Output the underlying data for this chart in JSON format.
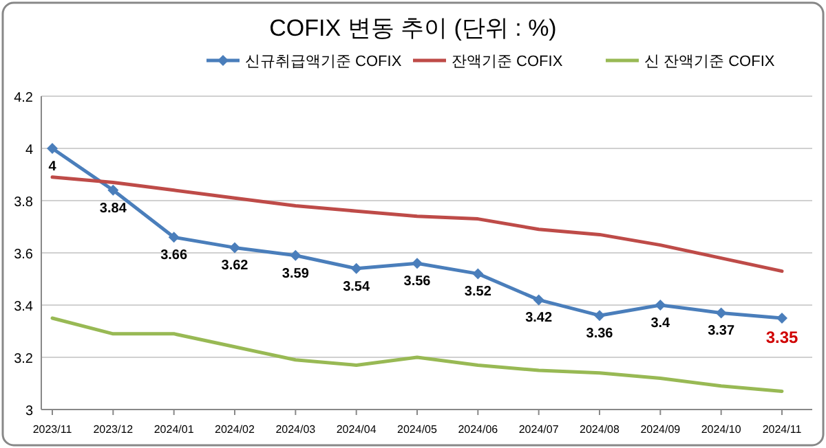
{
  "chart_data": {
    "type": "line",
    "title": "COFIX 변동 추이 (단위 : %)",
    "categories": [
      "2023/11",
      "2023/12",
      "2024/01",
      "2024/02",
      "2024/03",
      "2024/04",
      "2024/05",
      "2024/06",
      "2024/07",
      "2024/08",
      "2024/09",
      "2024/10",
      "2024/11"
    ],
    "series": [
      {
        "name": "신규취급액기준 COFIX",
        "color": "#4a7ebb",
        "marker": "diamond",
        "data_labels": true,
        "values": [
          4,
          3.84,
          3.66,
          3.62,
          3.59,
          3.54,
          3.56,
          3.52,
          3.42,
          3.36,
          3.4,
          3.37,
          3.35
        ]
      },
      {
        "name": "잔액기준 COFIX",
        "color": "#be4b48",
        "marker": "none",
        "values": [
          3.89,
          3.87,
          3.84,
          3.81,
          3.78,
          3.76,
          3.74,
          3.73,
          3.69,
          3.67,
          3.63,
          3.58,
          3.53
        ]
      },
      {
        "name": "신 잔액기준 COFIX",
        "color": "#98b954",
        "marker": "none",
        "values": [
          3.35,
          3.29,
          3.29,
          3.24,
          3.19,
          3.17,
          3.2,
          3.17,
          3.15,
          3.14,
          3.12,
          3.09,
          3.07
        ]
      }
    ],
    "ylim": [
      3,
      4.2
    ],
    "yticks": [
      3,
      3.2,
      3.4,
      3.6,
      3.8,
      4,
      4.2
    ],
    "grid": "y",
    "legend": "top",
    "line_style": "solid"
  }
}
